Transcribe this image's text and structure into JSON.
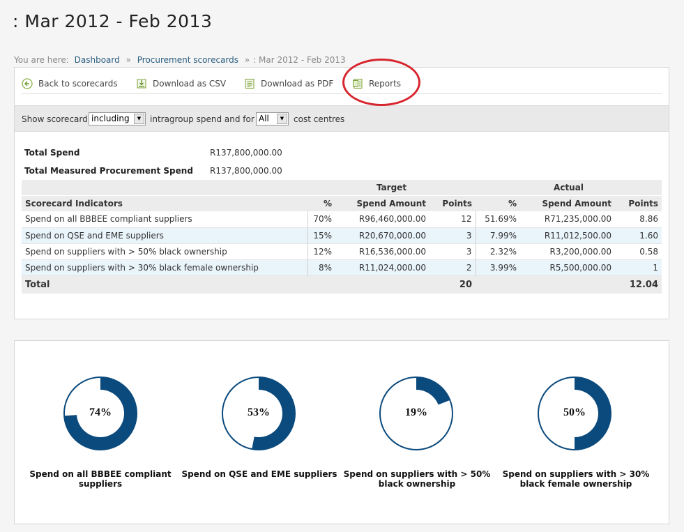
{
  "page": {
    "title": ": Mar 2012 - Feb 2013"
  },
  "breadcrumb": {
    "prefix": "You are here:",
    "items": [
      "Dashboard",
      "Procurement scorecards"
    ],
    "current": ": Mar 2012 - Feb 2013"
  },
  "toolbar": {
    "back": "Back to scorecards",
    "csv": "Download as CSV",
    "pdf": "Download as PDF",
    "reports": "Reports"
  },
  "filter": {
    "show_label": "Show scorecard",
    "intragroup_value": "including",
    "mid_label": "intragroup spend and for",
    "cost_centre_value": "All",
    "end_label": "cost centres"
  },
  "summary": {
    "total_spend_label": "Total Spend",
    "total_spend_value": "R137,800,000.00",
    "measured_label": "Total Measured Procurement Spend",
    "measured_value": "R137,800,000.00"
  },
  "table": {
    "group_target": "Target",
    "group_actual": "Actual",
    "headers": [
      "Scorecard Indicators",
      "%",
      "Spend Amount",
      "Points",
      "%",
      "Spend Amount",
      "Points"
    ],
    "rows": [
      [
        "Spend on all BBBEE compliant suppliers",
        "70%",
        "R96,460,000.00",
        "12",
        "51.69%",
        "R71,235,000.00",
        "8.86"
      ],
      [
        "Spend on QSE and EME suppliers",
        "15%",
        "R20,670,000.00",
        "3",
        "7.99%",
        "R11,012,500.00",
        "1.60"
      ],
      [
        "Spend on suppliers with > 50% black ownership",
        "12%",
        "R16,536,000.00",
        "3",
        "2.32%",
        "R3,200,000.00",
        "0.58"
      ],
      [
        "Spend on suppliers with > 30% black female ownership",
        "8%",
        "R11,024,000.00",
        "2",
        "3.99%",
        "R5,500,000.00",
        "1"
      ]
    ],
    "total_label": "Total",
    "total_target_points": "20",
    "total_actual_points": "12.04"
  },
  "donuts": [
    {
      "percent": 74,
      "label": "74%",
      "title": "Spend on all BBBEE compliant suppliers"
    },
    {
      "percent": 53,
      "label": "53%",
      "title": "Spend on QSE and EME suppliers"
    },
    {
      "percent": 19,
      "label": "19%",
      "title": "Spend on suppliers with > 50% black ownership"
    },
    {
      "percent": 50,
      "label": "50%",
      "title": "Spend on suppliers with > 30% black female ownership"
    }
  ],
  "colors": {
    "donut_fill": "#0b4a7d",
    "link": "#2a5d7f",
    "highlight_circle": "#d8262e",
    "row_alt": "#e9f4fb"
  },
  "icons": {
    "back": "back-arrow-icon",
    "csv": "download-csv-icon",
    "pdf": "download-pdf-icon",
    "reports": "reports-icon"
  }
}
